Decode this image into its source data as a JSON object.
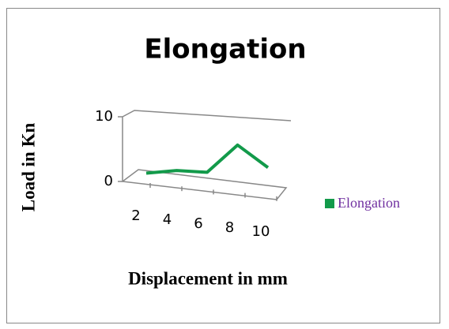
{
  "chart_data": {
    "type": "line",
    "title": "Elongation",
    "x_label": "Displacement in mm",
    "y_label": "Load in Kn",
    "categories": [
      2,
      4,
      6,
      8,
      10
    ],
    "series": [
      {
        "name": "Elongation",
        "color": "#129a4a",
        "values": [
          0.3,
          1,
          1,
          5.5,
          2.3
        ]
      }
    ],
    "ylim": [
      0,
      10
    ],
    "yticks": [
      0,
      10
    ],
    "legend": "right"
  }
}
